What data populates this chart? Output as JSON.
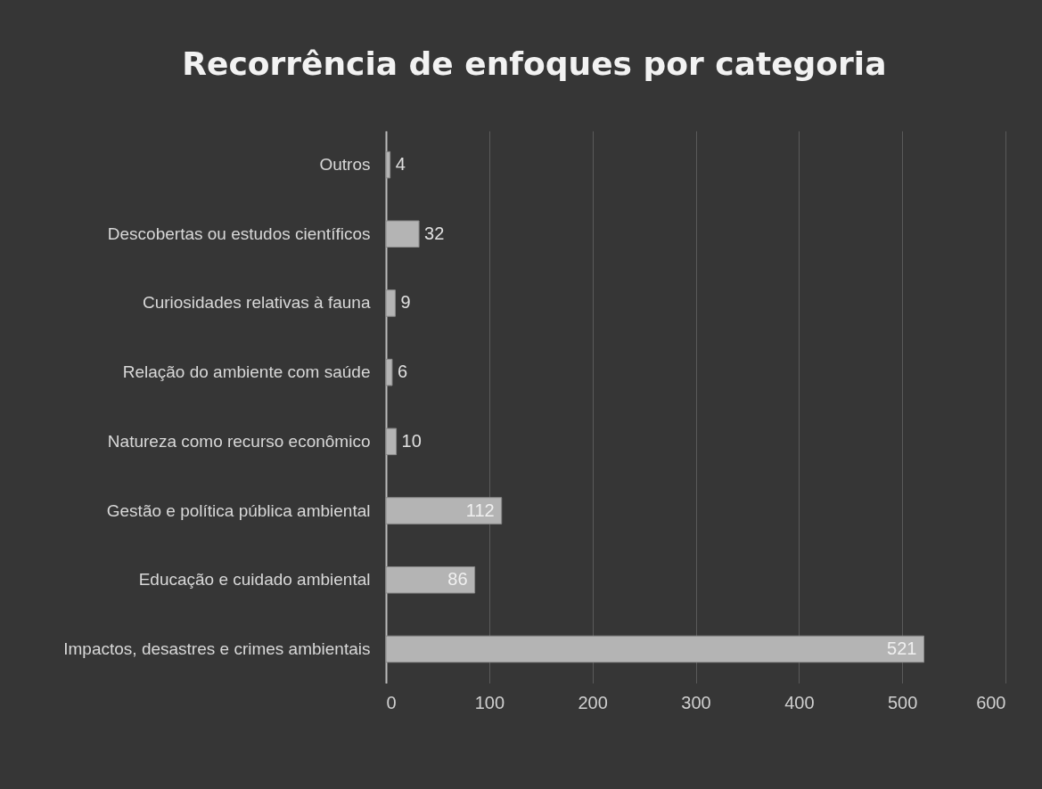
{
  "chart_data": {
    "type": "bar",
    "orientation": "horizontal",
    "title": "Recorrência de enfoques por categoria",
    "categories": [
      "Outros",
      "Descobertas ou estudos científicos",
      "Curiosidades relativas à fauna",
      "Relação do ambiente com saúde",
      "Natureza como recurso econômico",
      "Gestão e política pública ambiental",
      "Educação e cuidado ambiental",
      "Impactos, desastres e crimes ambientais"
    ],
    "values": [
      4,
      32,
      9,
      6,
      10,
      112,
      86,
      521
    ],
    "color": "#b4b4b4",
    "xlim": [
      0,
      600
    ],
    "xticks": [
      0,
      100,
      200,
      300,
      400,
      500,
      600
    ],
    "grid": "x",
    "data_labels": true
  }
}
